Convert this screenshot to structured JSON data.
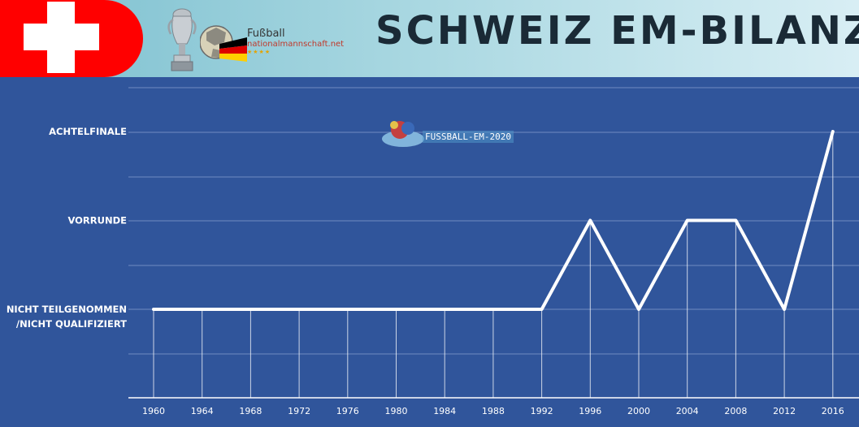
{
  "header": {
    "title": "SCHWEIZ EM-BILANZ",
    "logo_line1": "Fußball",
    "logo_line2": "nationalmannschaft.net"
  },
  "watermark": {
    "text": "FUSSBALL-EM-2020"
  },
  "colors": {
    "flag_red": "#ff0000",
    "plot_background": "#30559b",
    "line": "#ffffff",
    "title": "#1a2a36"
  },
  "chart_data": {
    "type": "line",
    "x": [
      "1960",
      "1964",
      "1968",
      "1972",
      "1976",
      "1980",
      "1984",
      "1988",
      "1992",
      "1996",
      "2000",
      "2004",
      "2008",
      "2012",
      "2016"
    ],
    "y_categories": [
      "NICHT TEILGENOMMEN /NICHT QUALIFIZIERT",
      "VORRUNDE",
      "ACHTELFINALE"
    ],
    "y_tick_labels": [
      [
        "NICHT TEILGENOMMEN",
        "/NICHT QUALIFIZIERT"
      ],
      [
        "VORRUNDE"
      ],
      [
        "ACHTELFINALE"
      ]
    ],
    "series": [
      {
        "values": [
          0,
          0,
          0,
          0,
          0,
          0,
          0,
          0,
          0,
          1,
          0,
          1,
          1,
          0,
          2
        ]
      }
    ],
    "grid": true,
    "title": "",
    "xlabel": "",
    "ylabel": ""
  }
}
